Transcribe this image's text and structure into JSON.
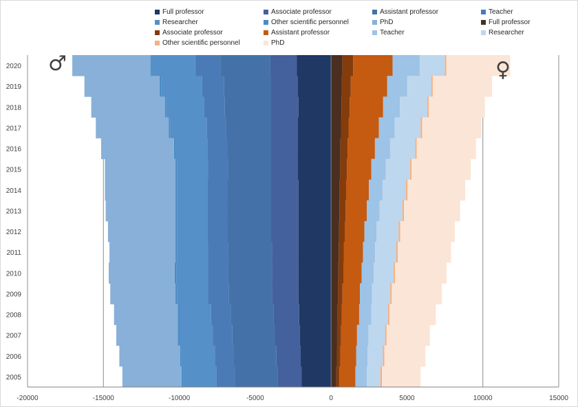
{
  "chart_data": {
    "type": "bar",
    "orientation": "horizontal",
    "stacked": true,
    "categories": [
      "2005",
      "2006",
      "2007",
      "2008",
      "2009",
      "2010",
      "2011",
      "2012",
      "2013",
      "2014",
      "2015",
      "2016",
      "2017",
      "2018",
      "2019",
      "2020"
    ],
    "xlim": [
      -20000,
      15000
    ],
    "xticks": [
      -20000,
      -15000,
      -10000,
      -5000,
      0,
      5000,
      10000,
      15000
    ],
    "gridlines": "vertical, major x ticks",
    "legend_position": "top",
    "gender_labels": {
      "male": "♂",
      "female": "♀"
    },
    "series": [
      {
        "name": "Full professor",
        "side": "male",
        "color": "#1f3864",
        "values": [
          -1950,
          -2000,
          -2050,
          -2100,
          -2150,
          -2150,
          -2150,
          -2150,
          -2150,
          -2150,
          -2200,
          -2200,
          -2200,
          -2150,
          -2200,
          -2250
        ]
      },
      {
        "name": "Associate professor",
        "side": "male",
        "color": "#44619d",
        "values": [
          -1550,
          -1600,
          -1650,
          -1700,
          -1750,
          -1750,
          -1750,
          -1800,
          -1800,
          -1800,
          -1750,
          -1750,
          -1750,
          -1800,
          -1750,
          -1750
        ]
      },
      {
        "name": "Assistant professor",
        "side": "male",
        "color": "#4472a8",
        "values": [
          -2850,
          -2800,
          -2800,
          -2800,
          -2850,
          -2900,
          -2900,
          -2900,
          -2900,
          -2900,
          -2850,
          -2900,
          -2950,
          -3050,
          -3100,
          -3300
        ]
      },
      {
        "name": "Teacher",
        "side": "male",
        "color": "#4b7bb6",
        "values": [
          -1200,
          -1250,
          -1300,
          -1300,
          -1350,
          -1300,
          -1300,
          -1300,
          -1300,
          -1300,
          -1300,
          -1300,
          -1300,
          -1350,
          -1450,
          -1650
        ]
      },
      {
        "name": "Researcher",
        "side": "male",
        "color": "#5590c8",
        "values": [
          -2200,
          -2200,
          -2200,
          -2100,
          -2050,
          -2100,
          -2050,
          -2000,
          -2000,
          -2000,
          -2050,
          -2100,
          -2400,
          -2500,
          -2700,
          -2850
        ]
      },
      {
        "name": "Other scientific personnel",
        "side": "male",
        "color": "#4a8cc4",
        "values": [
          -100,
          -100,
          -100,
          -100,
          -100,
          -100,
          -100,
          -100,
          -100,
          -100,
          -100,
          -100,
          -100,
          -100,
          -100,
          -100
        ]
      },
      {
        "name": "PhD",
        "side": "male",
        "color": "#88b0d8",
        "values": [
          -3900,
          -4000,
          -4050,
          -4200,
          -4300,
          -4350,
          -4350,
          -4450,
          -4600,
          -4650,
          -4650,
          -4800,
          -4800,
          -4850,
          -4950,
          -5150
        ]
      },
      {
        "name": "Full professor",
        "side": "female",
        "color": "#4a2f20",
        "values": [
          350,
          380,
          400,
          420,
          450,
          480,
          500,
          520,
          550,
          570,
          600,
          620,
          650,
          680,
          700,
          750
        ]
      },
      {
        "name": "Associate professor",
        "side": "female",
        "color": "#843c0c",
        "values": [
          200,
          230,
          260,
          280,
          300,
          330,
          350,
          380,
          400,
          420,
          450,
          470,
          500,
          550,
          600,
          700
        ]
      },
      {
        "name": "Assistant professor",
        "side": "female",
        "color": "#c55a11",
        "values": [
          1050,
          1050,
          1050,
          1150,
          1150,
          1200,
          1250,
          1300,
          1400,
          1500,
          1600,
          1800,
          2000,
          2200,
          2400,
          2600
        ]
      },
      {
        "name": "Teacher",
        "side": "female",
        "color": "#9dc3e6",
        "values": [
          750,
          750,
          750,
          800,
          800,
          800,
          800,
          800,
          850,
          900,
          950,
          1000,
          1050,
          1100,
          1300,
          1800
        ]
      },
      {
        "name": "Researcher",
        "side": "female",
        "color": "#bdd7ee",
        "values": [
          900,
          1000,
          1100,
          1100,
          1200,
          1300,
          1400,
          1450,
          1500,
          1550,
          1600,
          1650,
          1700,
          1800,
          1600,
          1650
        ]
      },
      {
        "name": "Other scientific personnel",
        "side": "female",
        "color": "#f4b183",
        "values": [
          100,
          100,
          100,
          100,
          100,
          100,
          100,
          100,
          100,
          100,
          100,
          100,
          100,
          100,
          100,
          100
        ]
      },
      {
        "name": "PhD",
        "side": "female",
        "color": "#fbe5d6",
        "values": [
          2550,
          2700,
          2850,
          3050,
          3300,
          3400,
          3500,
          3600,
          3700,
          3800,
          3900,
          3900,
          3900,
          3700,
          3900,
          4200
        ]
      }
    ]
  }
}
